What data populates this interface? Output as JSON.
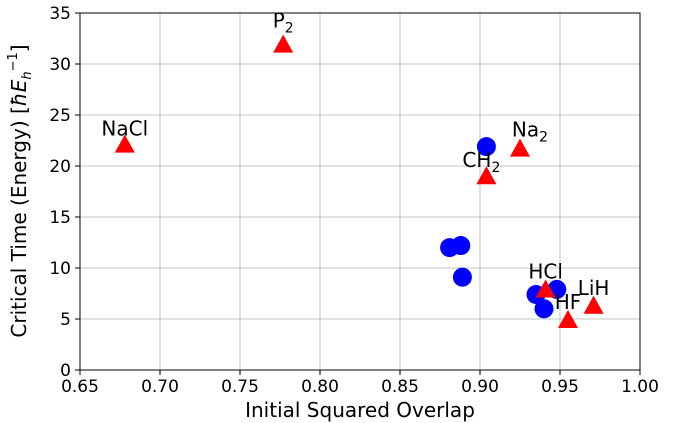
{
  "chart_data": {
    "type": "scatter",
    "xlabel": "Initial Squared Overlap",
    "ylabel_parts": {
      "prefix": "Critical Time (Energy) [",
      "hbar_E": "ħE",
      "sub": "h",
      "sup": "−1",
      "suffix": "]"
    },
    "xlim": [
      0.65,
      1.0
    ],
    "ylim": [
      0,
      35
    ],
    "xticks": [
      "0.65",
      "0.70",
      "0.75",
      "0.80",
      "0.85",
      "0.90",
      "0.95",
      "1.00"
    ],
    "yticks": [
      "0",
      "5",
      "10",
      "15",
      "20",
      "25",
      "30",
      "35"
    ],
    "grid": true,
    "colors": {
      "circle": "#0000ff",
      "triangle": "#ff0000"
    },
    "series": [
      {
        "marker": "circle",
        "x": [
          0.904,
          0.881,
          0.888,
          0.889,
          0.935,
          0.948,
          0.94
        ],
        "y": [
          21.9,
          12.0,
          12.2,
          9.1,
          7.4,
          7.9,
          6.0
        ]
      },
      {
        "marker": "triangle",
        "x": [
          0.678,
          0.777,
          0.925,
          0.904,
          0.941,
          0.955,
          0.971
        ],
        "y": [
          22.0,
          31.8,
          21.6,
          18.9,
          7.8,
          4.8,
          6.2
        ]
      }
    ],
    "annotations": [
      {
        "id": "nacl",
        "base": "NaCl",
        "sub": "",
        "x": 0.678,
        "y": 22.0
      },
      {
        "id": "p2",
        "base": "P",
        "sub": "2",
        "x": 0.777,
        "y": 31.8
      },
      {
        "id": "na2",
        "base": "Na",
        "sub": "2",
        "x": 0.925,
        "y": 21.6
      },
      {
        "id": "ch2",
        "base": "CH",
        "sub": "2",
        "x": 0.904,
        "y": 18.9
      },
      {
        "id": "hcl",
        "base": "HCl",
        "sub": "",
        "x": 0.941,
        "y": 7.8
      },
      {
        "id": "hf",
        "base": "HF",
        "sub": "",
        "x": 0.955,
        "y": 4.8
      },
      {
        "id": "lih",
        "base": "LiH",
        "sub": "",
        "x": 0.971,
        "y": 6.2
      }
    ]
  }
}
